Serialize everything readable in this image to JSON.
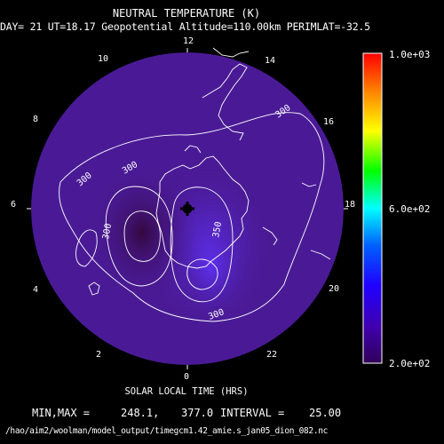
{
  "title": "NEUTRAL TEMPERATURE (K)",
  "subtitle": "DAY= 21 UT=18.17 Geopotential Altitude=110.00km PERIMLAT=-32.5",
  "hour_labels": {
    "h12": "12",
    "h14": "14",
    "h16": "16",
    "h18": "18",
    "h20": "20",
    "h22": "22",
    "h0": "0",
    "h2": "2",
    "h4": "4",
    "h6": "6",
    "h8": "8",
    "h10": "10"
  },
  "xlabel": "SOLAR LOCAL TIME (HRS)",
  "stats": {
    "minmax_label": "MIN,MAX =",
    "min": "248.1,",
    "max": "377.0",
    "interval_label": "INTERVAL =",
    "interval": "25.00"
  },
  "file_path": "/hao/aim2/woolman/model_output/timegcm1.42_amie.s_jan05_dion_082.nc",
  "colorbar": {
    "max_label": "1.0e+03",
    "mid_label": "6.0e+02",
    "min_label": "2.0e+02",
    "colors": [
      "#ff0000",
      "#ff7f00",
      "#ffff00",
      "#00ff00",
      "#00ffff",
      "#0000ff",
      "#4000aa",
      "#300058"
    ]
  },
  "contour_labels": {
    "c300_top": "300",
    "c300_left": "300",
    "c300_mid": "300",
    "c300_inner": "300",
    "c350": "350",
    "c300_bottom": "300"
  },
  "colors": {
    "field_base": "#4a1a96",
    "field_warm": "#5522c8",
    "field_hot": "#5a2ae0",
    "field_cold": "#3a0c54",
    "contour": "#ffffff"
  }
}
